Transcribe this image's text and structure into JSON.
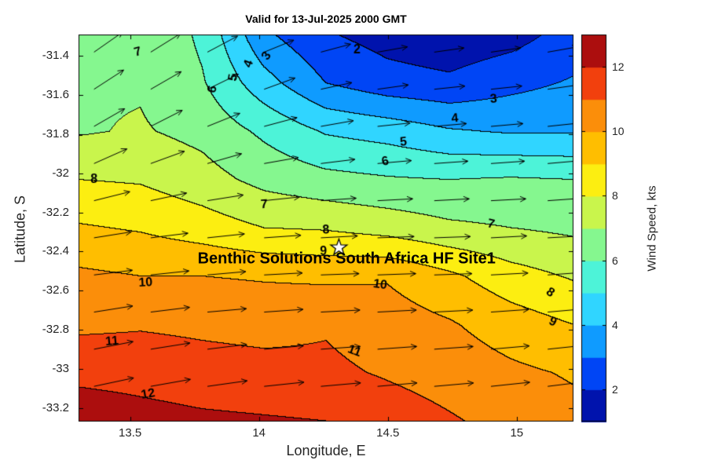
{
  "title": "Valid for 13-Jul-2025 2000 GMT",
  "annotation": {
    "text": "Benthic Solutions South Africa HF Site1",
    "lon": 14.34,
    "lat": -32.44,
    "star_marker": {
      "lon": 14.31,
      "lat": -32.38
    }
  },
  "axes": {
    "xlabel": "Longitude, E",
    "ylabel": "Latitude, S",
    "x_tick_values": [
      13.5,
      14,
      14.5,
      15
    ],
    "x_tick_labels": [
      "13.5",
      "14",
      "14.5",
      "15"
    ],
    "y_tick_values": [
      -31.4,
      -31.6,
      -31.8,
      -32,
      -32.2,
      -32.4,
      -32.6,
      -32.8,
      -33,
      -33.2
    ],
    "y_tick_labels": [
      "-31.4",
      "-31.6",
      "-31.8",
      "-32",
      "-32.2",
      "-32.4",
      "-32.6",
      "-32.8",
      "-33",
      "-33.2"
    ]
  },
  "colorbar": {
    "label": "Wind Speed, kts",
    "tick_values": [
      2,
      4,
      6,
      8,
      10,
      12
    ],
    "tick_labels": [
      "2",
      "4",
      "6",
      "8",
      "10",
      "12"
    ],
    "vmin": 1,
    "vmax": 13,
    "band_edges": [
      2,
      3,
      4,
      5,
      6,
      7,
      8,
      9,
      10,
      11,
      12
    ],
    "colors": [
      "#0013AD",
      "#0045F5",
      "#0F9BFF",
      "#30D5FF",
      "#4DF3D8",
      "#85F78F",
      "#C9F54C",
      "#FCEE11",
      "#FFBE00",
      "#FB8E0A",
      "#F2400D",
      "#AC0E0E"
    ]
  },
  "colors": {
    "background": "#ffffff",
    "text": "#262626",
    "title_text": "#000000",
    "contour_line": "#000000",
    "arrow": "#000000",
    "axes_box": "#000000",
    "label_text": "#000000",
    "star_fill": "#ffffff",
    "star_edge": "#000000"
  },
  "chart_data": {
    "type": "heatmap",
    "subtype": "filled_contour_with_quiver",
    "title": "Valid for 13-Jul-2025 2000 GMT",
    "xlabel": "Longitude, E",
    "ylabel": "Latitude, S",
    "zlabel": "Wind Speed, kts",
    "xlim": [
      13.3,
      15.22
    ],
    "ylim": [
      -33.27,
      -31.29
    ],
    "grid_on": false,
    "legend_position": "colorbar-right",
    "contour_levels": [
      2,
      3,
      4,
      5,
      6,
      7,
      8,
      9,
      10,
      11,
      12
    ],
    "grid_lon": [
      13.3,
      13.54,
      13.78,
      14.02,
      14.26,
      14.5,
      14.74,
      14.98,
      15.22
    ],
    "grid_lat": [
      -31.29,
      -31.54,
      -31.78,
      -32.03,
      -32.28,
      -32.53,
      -32.77,
      -33.02,
      -33.27
    ],
    "wind_speed_kts": [
      [
        6.8,
        7.0,
        5.8,
        3.2,
        2.1,
        1.6,
        1.3,
        1.6,
        2.4
      ],
      [
        6.9,
        6.9,
        6.1,
        4.4,
        3.0,
        2.4,
        2.2,
        2.7,
        3.1
      ],
      [
        6.9,
        7.1,
        6.7,
        5.8,
        4.9,
        4.6,
        4.1,
        3.9,
        3.9
      ],
      [
        8.0,
        7.9,
        7.4,
        6.7,
        6.3,
        6.1,
        6.0,
        6.1,
        6.0
      ],
      [
        9.1,
        8.9,
        8.5,
        8.0,
        7.9,
        7.6,
        7.2,
        7.0,
        6.8
      ],
      [
        10.2,
        10.0,
        10.0,
        9.9,
        9.8,
        9.9,
        9.2,
        8.4,
        7.9
      ],
      [
        10.8,
        10.9,
        10.8,
        10.7,
        10.9,
        10.5,
        10.1,
        9.5,
        9.0
      ],
      [
        11.7,
        11.6,
        11.4,
        11.3,
        11.2,
        10.9,
        10.6,
        10.2,
        9.9
      ],
      [
        12.7,
        12.4,
        12.2,
        12.1,
        12.0,
        11.5,
        11.1,
        10.7,
        10.3
      ]
    ],
    "contour_labels": [
      {
        "text": "7",
        "lon": 13.53,
        "lat": -31.38,
        "rot": -15
      },
      {
        "text": "2",
        "lon": 14.38,
        "lat": -31.37,
        "rot": 0
      },
      {
        "text": "6",
        "lon": 13.82,
        "lat": -31.57,
        "rot": -78
      },
      {
        "text": "5",
        "lon": 13.9,
        "lat": -31.51,
        "rot": -80
      },
      {
        "text": "4",
        "lon": 13.96,
        "lat": -31.44,
        "rot": -70
      },
      {
        "text": "3",
        "lon": 14.03,
        "lat": -31.4,
        "rot": -55
      },
      {
        "text": "3",
        "lon": 14.91,
        "lat": -31.62,
        "rot": -5
      },
      {
        "text": "4",
        "lon": 14.76,
        "lat": -31.72,
        "rot": -5
      },
      {
        "text": "5",
        "lon": 14.56,
        "lat": -31.84,
        "rot": -5
      },
      {
        "text": "6",
        "lon": 14.49,
        "lat": -31.94,
        "rot": -12
      },
      {
        "text": "7",
        "lon": 14.02,
        "lat": -32.16,
        "rot": -3
      },
      {
        "text": "8",
        "lon": 13.36,
        "lat": -32.03,
        "rot": 0
      },
      {
        "text": "8",
        "lon": 14.26,
        "lat": -32.29,
        "rot": -3
      },
      {
        "text": "9",
        "lon": 14.25,
        "lat": -32.4,
        "rot": 0
      },
      {
        "text": "7",
        "lon": 14.9,
        "lat": -32.26,
        "rot": 12
      },
      {
        "text": "8",
        "lon": 15.13,
        "lat": -32.61,
        "rot": 35
      },
      {
        "text": "9",
        "lon": 15.14,
        "lat": -32.76,
        "rot": 25
      },
      {
        "text": "10",
        "lon": 13.56,
        "lat": -32.56,
        "rot": -3
      },
      {
        "text": "10",
        "lon": 14.47,
        "lat": -32.57,
        "rot": 8
      },
      {
        "text": "11",
        "lon": 13.43,
        "lat": -32.86,
        "rot": -5
      },
      {
        "text": "11",
        "lon": 14.37,
        "lat": -32.91,
        "rot": 20
      },
      {
        "text": "12",
        "lon": 13.57,
        "lat": -33.13,
        "rot": -10
      }
    ],
    "quiver": {
      "lon": [
        13.36,
        13.58,
        13.8,
        14.02,
        14.24,
        14.46,
        14.68,
        14.9,
        15.12
      ],
      "lat": [
        -31.38,
        -31.57,
        -31.76,
        -31.95,
        -32.14,
        -32.33,
        -32.52,
        -32.71,
        -32.9,
        -33.09
      ],
      "angles_deg": [
        [
          35,
          32,
          28,
          22,
          15,
          10,
          8,
          8,
          10
        ],
        [
          33,
          30,
          26,
          20,
          12,
          8,
          6,
          6,
          8
        ],
        [
          30,
          27,
          22,
          15,
          10,
          6,
          5,
          5,
          6
        ],
        [
          24,
          20,
          16,
          10,
          7,
          5,
          4,
          4,
          5
        ],
        [
          14,
          12,
          9,
          6,
          4,
          3,
          3,
          3,
          4
        ],
        [
          9,
          7,
          6,
          4,
          3,
          2,
          2,
          3,
          3
        ],
        [
          7,
          6,
          5,
          3,
          2,
          2,
          2,
          3,
          4
        ],
        [
          9,
          7,
          5,
          4,
          3,
          3,
          3,
          4,
          5
        ],
        [
          11,
          9,
          7,
          5,
          4,
          4,
          4,
          5,
          6
        ],
        [
          12,
          10,
          8,
          6,
          5,
          5,
          5,
          6,
          7
        ]
      ]
    }
  }
}
